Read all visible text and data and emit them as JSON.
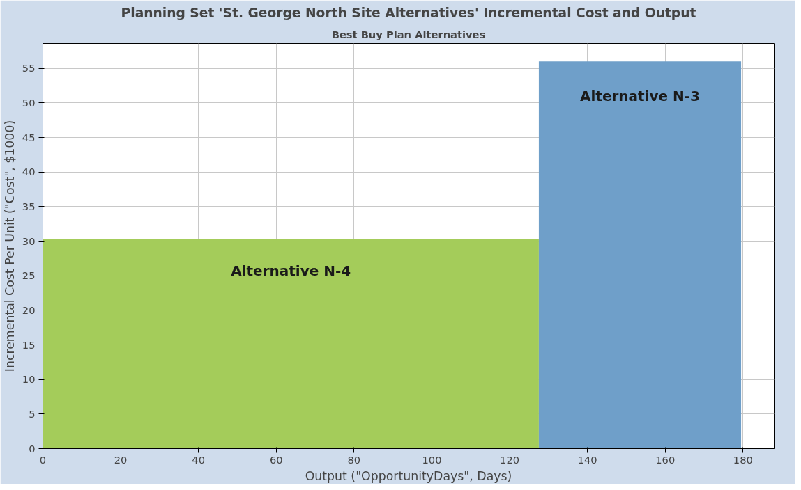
{
  "chart_data": {
    "type": "histogram",
    "title": "Planning Set 'St. George North Site Alternatives' Incremental Cost and Output",
    "subtitle": "Best Buy Plan Alternatives",
    "xlabel": "Output (\"OpportunityDays\", Days)",
    "ylabel": "Incremental Cost Per Unit (\"Cost\", $1000)",
    "bins": [
      0,
      127.5,
      179.5
    ],
    "values": [
      30.3,
      56.0
    ],
    "colors": [
      "#a4cc5a",
      "#6f9fc9"
    ],
    "annotations": [
      "Alternative N-4",
      "Alternative N-3"
    ],
    "xlim": [
      0,
      188
    ],
    "ylim": [
      0,
      58.6
    ],
    "xticks": [
      0,
      20,
      40,
      60,
      80,
      100,
      120,
      140,
      160,
      180
    ],
    "yticks": [
      0,
      5,
      10,
      15,
      20,
      25,
      30,
      35,
      40,
      45,
      50,
      55
    ],
    "grid": true
  }
}
